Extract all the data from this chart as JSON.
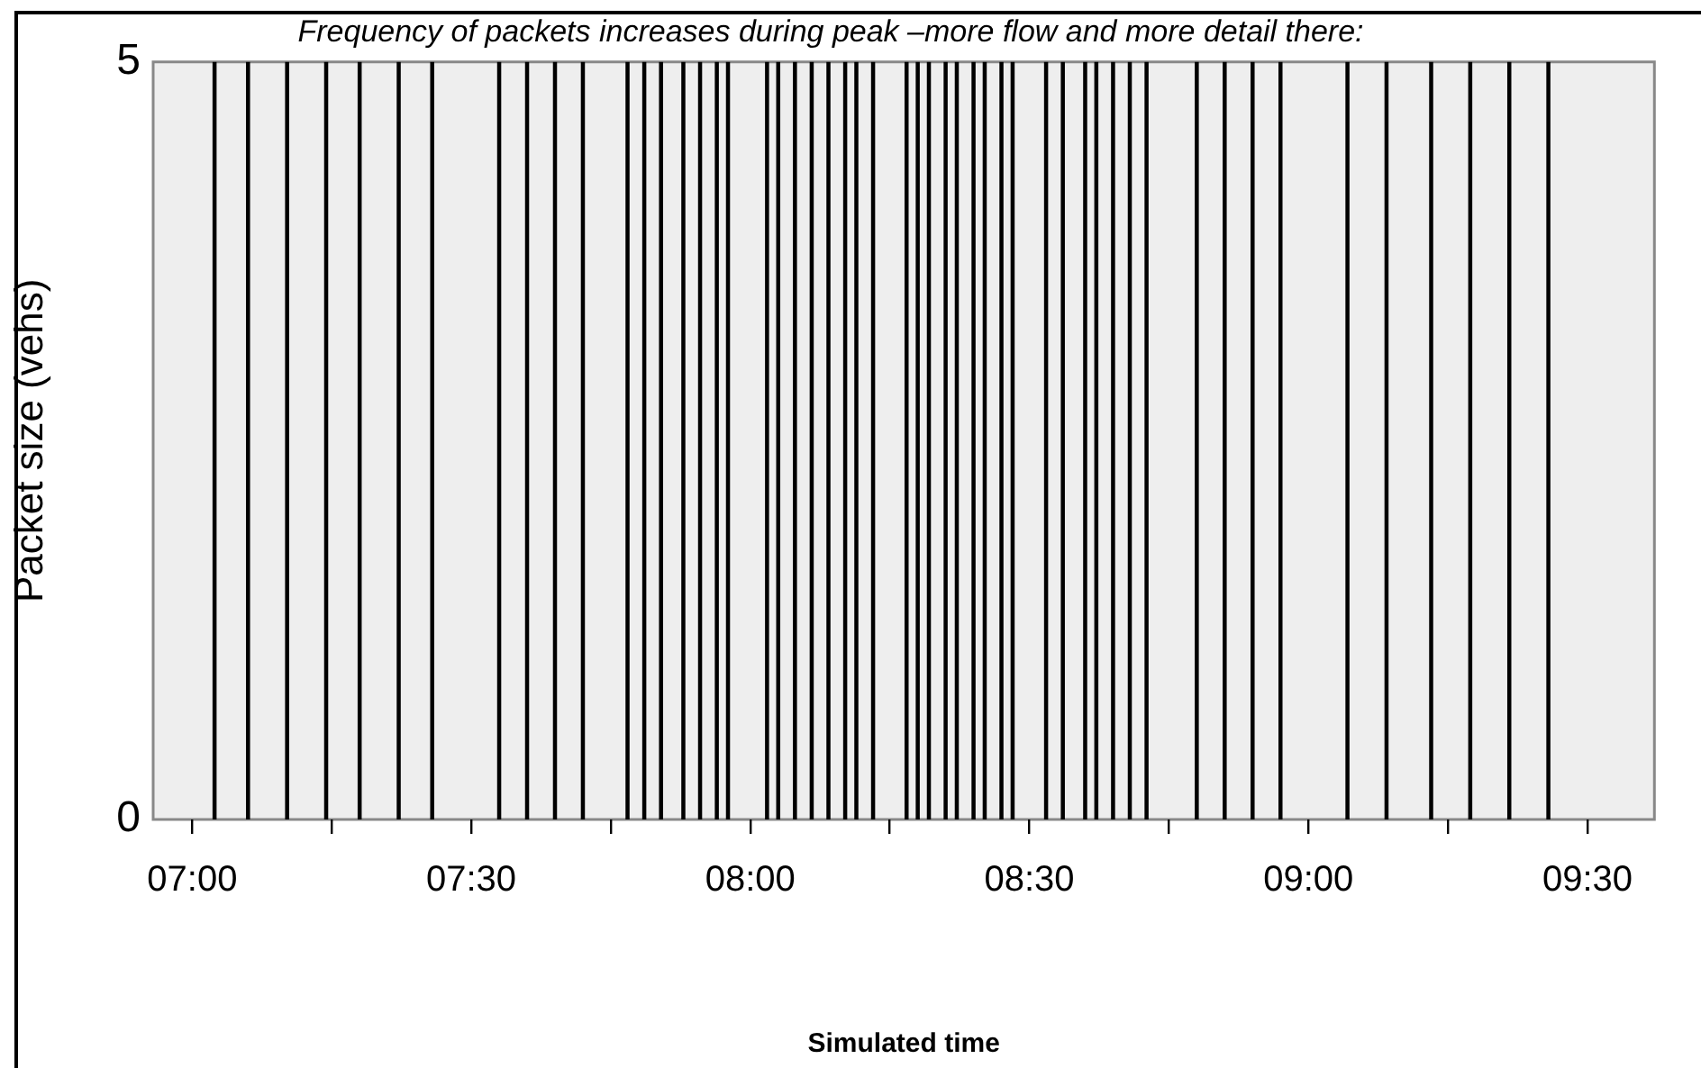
{
  "chart_data": {
    "type": "bar",
    "title": "Frequency of packets increases during peak –more flow and more detail there:",
    "xlabel": "Simulated time",
    "ylabel": "Packet size (vehs)",
    "x": [
      7.04,
      7.1,
      7.17,
      7.24,
      7.3,
      7.37,
      7.43,
      7.55,
      7.6,
      7.65,
      7.7,
      7.78,
      7.81,
      7.84,
      7.88,
      7.91,
      7.94,
      7.96,
      8.03,
      8.05,
      8.08,
      8.11,
      8.14,
      8.17,
      8.19,
      8.22,
      8.28,
      8.3,
      8.32,
      8.35,
      8.37,
      8.4,
      8.42,
      8.45,
      8.47,
      8.53,
      8.56,
      8.6,
      8.62,
      8.65,
      8.68,
      8.71,
      8.8,
      8.85,
      8.9,
      8.95,
      9.07,
      9.14,
      9.22,
      9.29,
      9.36,
      9.43
    ],
    "values": [
      5,
      5,
      5,
      5,
      5,
      5,
      5,
      5,
      5,
      5,
      5,
      5,
      5,
      5,
      5,
      5,
      5,
      5,
      5,
      5,
      5,
      5,
      5,
      5,
      5,
      5,
      5,
      5,
      5,
      5,
      5,
      5,
      5,
      5,
      5,
      5,
      5,
      5,
      5,
      5,
      5,
      5,
      5,
      5,
      5,
      5,
      5,
      5,
      5,
      5,
      5,
      5
    ],
    "color": "#000000",
    "xlim": [
      6.93,
      9.62
    ],
    "xticks": [
      {
        "value": 7,
        "label": "07:00"
      },
      {
        "value": 7.25,
        "label": null
      },
      {
        "value": 7.5,
        "label": "07:30"
      },
      {
        "value": 7.75,
        "label": null
      },
      {
        "value": 8,
        "label": "08:00"
      },
      {
        "value": 8.25,
        "label": null
      },
      {
        "value": 8.5,
        "label": "08:30"
      },
      {
        "value": 8.75,
        "label": null
      },
      {
        "value": 9,
        "label": "09:00"
      },
      {
        "value": 9.25,
        "label": null
      },
      {
        "value": 9.5,
        "label": "09:30"
      }
    ],
    "ylim": [
      0,
      5
    ],
    "yticks": [
      0,
      5
    ],
    "grid": false,
    "legend": false
  }
}
